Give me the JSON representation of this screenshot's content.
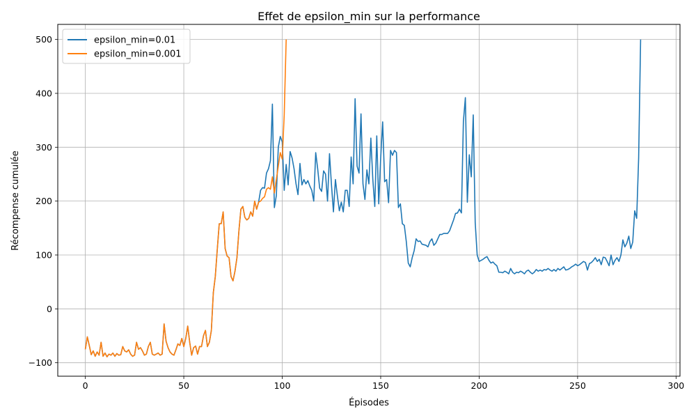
{
  "chart_data": {
    "type": "line",
    "title": "Effet de epsilon_min sur la performance",
    "xlabel": "Épisodes",
    "ylabel": "Récompense cumulée",
    "xlim": [
      -14,
      302
    ],
    "ylim": [
      -125,
      528
    ],
    "xticks": [
      0,
      50,
      100,
      150,
      200,
      250,
      300
    ],
    "yticks": [
      -100,
      0,
      100,
      200,
      300,
      400,
      500
    ],
    "xtick_labels": [
      "0",
      "50",
      "100",
      "150",
      "200",
      "250",
      "300"
    ],
    "ytick_labels": [
      "−100",
      "0",
      "100",
      "200",
      "300",
      "400",
      "500"
    ],
    "grid": true,
    "legend_position": "upper-left",
    "series": [
      {
        "name": "epsilon_min=0.01",
        "color": "#1f77b4",
        "x_start": 0,
        "values": [
          -75,
          -52,
          -68,
          -85,
          -78,
          -88,
          -80,
          -86,
          -62,
          -88,
          -82,
          -89,
          -84,
          -86,
          -82,
          -88,
          -83,
          -86,
          -85,
          -70,
          -78,
          -80,
          -76,
          -84,
          -88,
          -86,
          -62,
          -75,
          -72,
          -78,
          -86,
          -84,
          -70,
          -62,
          -84,
          -86,
          -84,
          -82,
          -86,
          -84,
          -28,
          -60,
          -72,
          -80,
          -84,
          -86,
          -76,
          -65,
          -68,
          -55,
          -70,
          -55,
          -32,
          -62,
          -86,
          -72,
          -69,
          -84,
          -70,
          -70,
          -50,
          -40,
          -70,
          -62,
          -40,
          30,
          60,
          110,
          158,
          158,
          180,
          112,
          98,
          95,
          60,
          52,
          70,
          95,
          145,
          185,
          190,
          170,
          165,
          168,
          180,
          172,
          200,
          185,
          198,
          220,
          225,
          224,
          252,
          260,
          275,
          380,
          188,
          210,
          300,
          320,
          310,
          220,
          268,
          230,
          292,
          280,
          260,
          232,
          212,
          270,
          230,
          240,
          232,
          238,
          228,
          220,
          200,
          290,
          260,
          224,
          218,
          256,
          250,
          200,
          288,
          230,
          180,
          240,
          210,
          182,
          198,
          180,
          220,
          220,
          190,
          282,
          232,
          390,
          265,
          252,
          362,
          232,
          203,
          258,
          232,
          317,
          240,
          190,
          321,
          195,
          280,
          347,
          236,
          240,
          197,
          294,
          285,
          294,
          290,
          188,
          195,
          158,
          155,
          125,
          85,
          78,
          95,
          108,
          130,
          125,
          126,
          120,
          119,
          118,
          115,
          125,
          130,
          118,
          122,
          130,
          138,
          138,
          140,
          140,
          140,
          145,
          155,
          165,
          177,
          178,
          185,
          178,
          348,
          392,
          198,
          286,
          245,
          360,
          160,
          100,
          88,
          90,
          92,
          95,
          97,
          90,
          85,
          87,
          83,
          80,
          68,
          68,
          67,
          70,
          68,
          65,
          75,
          68,
          65,
          68,
          67,
          70,
          68,
          65,
          70,
          72,
          68,
          65,
          68,
          73,
          70,
          72,
          70,
          73,
          72,
          75,
          72,
          70,
          73,
          70,
          75,
          72,
          75,
          78,
          72,
          73,
          75,
          78,
          80,
          83,
          80,
          82,
          85,
          88,
          86,
          72,
          84,
          86,
          90,
          95,
          88,
          92,
          82,
          96,
          95,
          88,
          80,
          100,
          82,
          90,
          95,
          88,
          100,
          128,
          115,
          122,
          135,
          112,
          124,
          182,
          168,
          280,
          500
        ]
      },
      {
        "name": "epsilon_min=0.001",
        "color": "#ff7f0e",
        "x_start": 0,
        "values": [
          -75,
          -52,
          -68,
          -85,
          -78,
          -88,
          -80,
          -86,
          -62,
          -88,
          -82,
          -89,
          -84,
          -86,
          -82,
          -88,
          -83,
          -86,
          -85,
          -70,
          -78,
          -80,
          -76,
          -84,
          -88,
          -86,
          -62,
          -75,
          -72,
          -78,
          -86,
          -84,
          -70,
          -62,
          -84,
          -86,
          -84,
          -82,
          -86,
          -84,
          -28,
          -60,
          -72,
          -80,
          -84,
          -86,
          -76,
          -65,
          -68,
          -55,
          -70,
          -55,
          -32,
          -62,
          -86,
          -72,
          -69,
          -84,
          -70,
          -70,
          -50,
          -40,
          -70,
          -62,
          -40,
          30,
          60,
          110,
          158,
          158,
          180,
          112,
          98,
          95,
          60,
          52,
          70,
          95,
          145,
          185,
          190,
          170,
          165,
          168,
          180,
          172,
          200,
          185,
          198,
          200,
          205,
          208,
          222,
          225,
          222,
          245,
          215,
          240,
          265,
          290,
          278,
          360,
          500
        ]
      }
    ]
  }
}
